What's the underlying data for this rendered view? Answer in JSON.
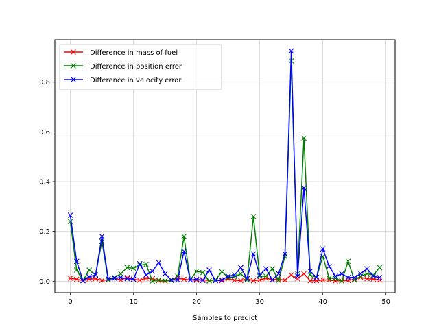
{
  "chart_data": {
    "type": "line",
    "title": "",
    "xlabel": "Samples to predict",
    "ylabel": "",
    "xlim": [
      -2.45,
      51.45
    ],
    "ylim": [
      -0.046,
      0.97
    ],
    "xticks": [
      0,
      10,
      20,
      30,
      40,
      50
    ],
    "yticks": [
      0.0,
      0.2,
      0.4,
      0.6,
      0.8
    ],
    "grid": true,
    "legend": "upper left",
    "marker": "x",
    "x": [
      0,
      1,
      2,
      3,
      4,
      5,
      6,
      7,
      8,
      9,
      10,
      11,
      12,
      13,
      14,
      15,
      16,
      17,
      18,
      19,
      20,
      21,
      22,
      23,
      24,
      25,
      26,
      27,
      28,
      29,
      30,
      31,
      32,
      33,
      34,
      35,
      36,
      37,
      38,
      39,
      40,
      41,
      42,
      43,
      44,
      45,
      46,
      47,
      48,
      49
    ],
    "series": [
      {
        "name": "Difference in mass of fuel",
        "color": "#ff0000",
        "values": [
          0.012,
          0.008,
          0.002,
          0.008,
          0.01,
          0.003,
          0.006,
          0.012,
          0.005,
          0.015,
          0.008,
          0.004,
          0.012,
          0.01,
          0.002,
          0.0,
          0.005,
          0.012,
          0.008,
          0.005,
          0.004,
          0.006,
          0.002,
          0.005,
          0.002,
          0.01,
          0.004,
          0.002,
          0.01,
          0.002,
          0.005,
          0.012,
          0.006,
          0.008,
          0.004,
          0.025,
          0.01,
          0.03,
          0.002,
          0.002,
          0.005,
          0.005,
          0.001,
          0.002,
          0.003,
          0.008,
          0.015,
          0.01,
          0.008,
          0.005
        ]
      },
      {
        "name": "Difference in position error",
        "color": "#008000",
        "values": [
          0.24,
          0.045,
          0.003,
          0.045,
          0.025,
          0.16,
          0.005,
          0.015,
          0.03,
          0.055,
          0.052,
          0.065,
          0.068,
          0.0,
          0.005,
          0.002,
          0.003,
          0.02,
          0.18,
          0.005,
          0.04,
          0.035,
          0.001,
          0.005,
          0.038,
          0.015,
          0.018,
          0.03,
          0.005,
          0.26,
          0.02,
          0.02,
          0.05,
          0.003,
          0.1,
          0.885,
          0.03,
          0.575,
          0.025,
          0.015,
          0.1,
          0.012,
          0.012,
          0.0,
          0.08,
          0.005,
          0.02,
          0.03,
          0.025,
          0.055
        ]
      },
      {
        "name": "Difference in velocity error",
        "color": "#0000ff",
        "values": [
          0.265,
          0.08,
          0.002,
          0.018,
          0.025,
          0.18,
          0.01,
          0.012,
          0.015,
          0.01,
          0.008,
          0.07,
          0.025,
          0.04,
          0.075,
          0.03,
          0.005,
          0.005,
          0.12,
          0.005,
          0.008,
          0.003,
          0.045,
          0.002,
          0.005,
          0.02,
          0.025,
          0.055,
          0.01,
          0.11,
          0.025,
          0.05,
          0.005,
          0.03,
          0.11,
          0.925,
          0.02,
          0.375,
          0.04,
          0.015,
          0.13,
          0.06,
          0.02,
          0.03,
          0.015,
          0.015,
          0.03,
          0.05,
          0.02,
          0.015
        ]
      }
    ]
  }
}
